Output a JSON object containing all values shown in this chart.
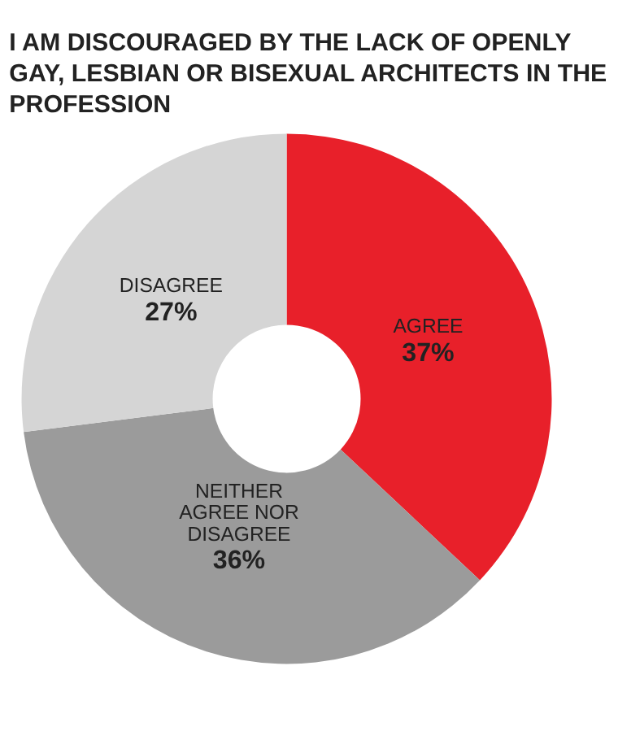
{
  "chart_data": {
    "type": "donut",
    "title": "I AM DISCOURAGED BY THE LACK OF OPENLY GAY, LESBIAN OR BISEXUAL ARCHITECTS IN THE PROFESSION",
    "categories": [
      "AGREE",
      "NEITHER AGREE NOR DISAGREE",
      "DISAGREE"
    ],
    "values": [
      37,
      36,
      27
    ],
    "value_labels": [
      "37%",
      "36%",
      "27%"
    ],
    "colors": [
      "#e8202a",
      "#9b9b9b",
      "#d5d5d5"
    ],
    "legend": false
  }
}
